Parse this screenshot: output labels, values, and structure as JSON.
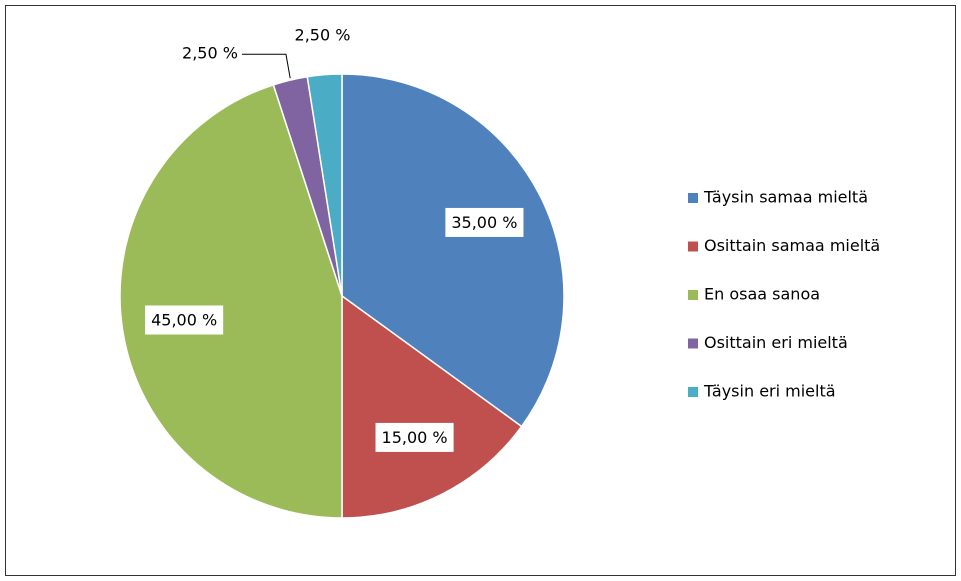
{
  "chart_data": {
    "type": "pie",
    "categories": [
      "Täysin samaa mieltä",
      "Osittain samaa mieltä",
      "En osaa sanoa",
      "Osittain eri mieltä",
      "Täysin eri mieltä"
    ],
    "values": [
      35,
      15,
      45,
      2.5,
      2.5
    ],
    "value_labels": [
      "35,00 %",
      "15,00 %",
      "45,00 %",
      "2,50 %",
      "2,50 %"
    ],
    "colors": [
      "#4f81bd",
      "#c0504d",
      "#9bbb59",
      "#8064a2",
      "#4bacc6"
    ],
    "legend": "right"
  }
}
